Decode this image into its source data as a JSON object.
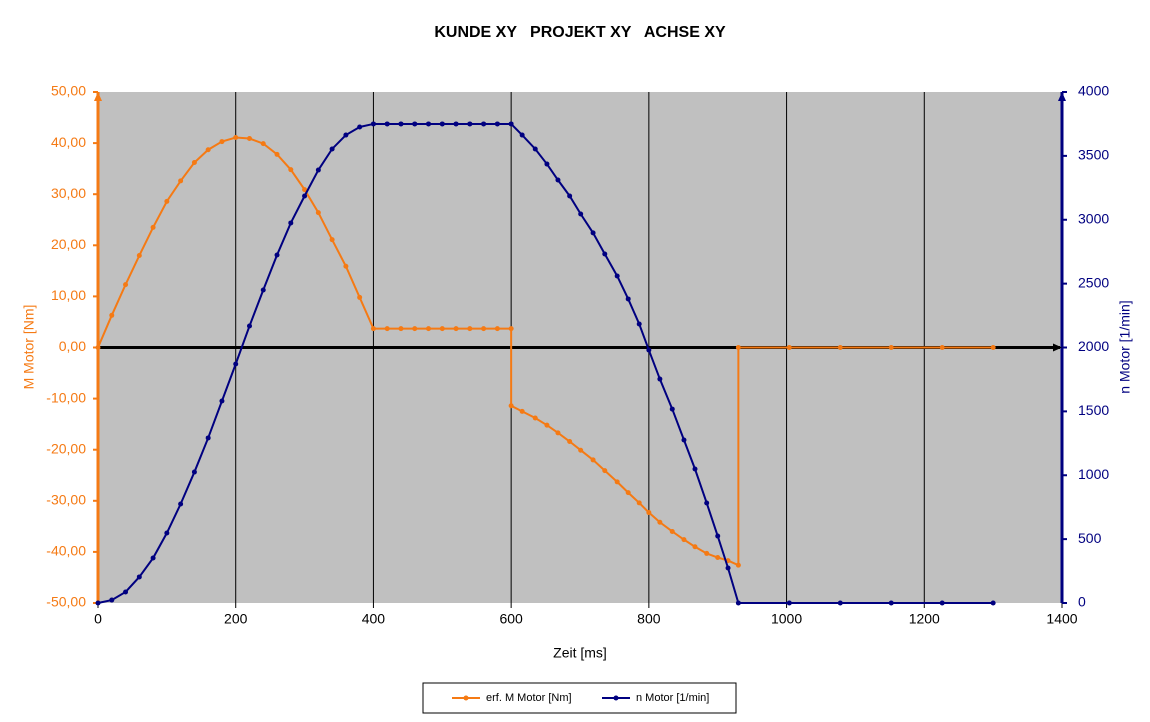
{
  "chart_data": {
    "type": "line",
    "title": "KUNDE XY   PROJEKT XY   ACHSE XY",
    "x_label": "Zeit [ms]",
    "y_label": "M Motor [Nm]",
    "y2_label": "n Motor [1/min]",
    "xlim": [
      0,
      1400
    ],
    "xticks": [
      0,
      200,
      400,
      600,
      800,
      1000,
      1200,
      1400
    ],
    "ylim": [
      -50,
      50
    ],
    "yticks": [
      {
        "value": -50,
        "label": "-50,00"
      },
      {
        "value": -40,
        "label": "-40,00"
      },
      {
        "value": -30,
        "label": "-30,00"
      },
      {
        "value": -20,
        "label": "-20,00"
      },
      {
        "value": -10,
        "label": "-10,00"
      },
      {
        "value": 0,
        "label": "0,00"
      },
      {
        "value": 10,
        "label": "10,00"
      },
      {
        "value": 20,
        "label": "20,00"
      },
      {
        "value": 30,
        "label": "30,00"
      },
      {
        "value": 40,
        "label": "40,00"
      },
      {
        "value": 50,
        "label": "50,00"
      }
    ],
    "y2lim": [
      0,
      4000
    ],
    "y2ticks": [
      0,
      500,
      1000,
      1500,
      2000,
      2500,
      3000,
      3500,
      4000
    ],
    "y_color": "#f57a14",
    "y2_color": "#000080",
    "grid": "x",
    "legend": "bottom",
    "series": [
      {
        "name": "erf. M Motor [Nm]",
        "color": "#f57a14",
        "x": [
          0,
          20,
          40,
          60,
          80,
          100,
          120,
          140,
          160,
          180,
          200,
          220,
          240,
          260,
          280,
          300,
          320,
          340,
          360,
          380,
          400,
          420,
          440,
          460,
          480,
          500,
          520,
          540,
          560,
          580,
          600,
          600,
          616,
          635,
          652,
          668,
          685,
          701,
          719,
          736,
          754,
          770,
          786,
          800,
          816,
          834,
          851,
          867,
          884,
          900,
          915,
          930,
          930,
          1004,
          1078,
          1152,
          1226,
          1300
        ],
        "values": [
          0,
          6.3,
          12.3,
          18,
          23.5,
          28.6,
          32.6,
          36.2,
          38.7,
          40.3,
          41.1,
          40.9,
          39.9,
          37.8,
          34.8,
          30.9,
          26.4,
          21.1,
          15.9,
          9.8,
          3.7,
          3.7,
          3.7,
          3.7,
          3.7,
          3.7,
          3.7,
          3.7,
          3.7,
          3.7,
          3.7,
          -11.4,
          -12.5,
          -13.8,
          -15.2,
          -16.7,
          -18.4,
          -20.1,
          -22,
          -24.1,
          -26.3,
          -28.4,
          -30.4,
          -32.3,
          -34.2,
          -36,
          -37.6,
          -39,
          -40.3,
          -41.1,
          -41.7,
          -42.6,
          0,
          0,
          0,
          0,
          0,
          0
        ]
      },
      {
        "name": "n Motor [1/min]",
        "color": "#000080",
        "axis": "y2",
        "x": [
          0,
          20,
          40,
          60,
          80,
          100,
          120,
          140,
          160,
          180,
          200,
          220,
          240,
          260,
          280,
          300,
          320,
          340,
          360,
          380,
          400,
          420,
          440,
          460,
          480,
          500,
          520,
          540,
          560,
          580,
          600,
          616,
          635,
          652,
          668,
          685,
          701,
          719,
          736,
          754,
          770,
          786,
          800,
          816,
          834,
          851,
          867,
          884,
          900,
          915,
          930,
          1004,
          1078,
          1152,
          1226,
          1300
        ],
        "values": [
          0,
          23,
          86,
          204,
          352,
          548,
          775,
          1025,
          1292,
          1581,
          1871,
          2168,
          2450,
          2724,
          2975,
          3186,
          3389,
          3554,
          3663,
          3726,
          3750,
          3750,
          3750,
          3750,
          3750,
          3750,
          3750,
          3750,
          3750,
          3750,
          3750,
          3663,
          3554,
          3436,
          3311,
          3186,
          3045,
          2897,
          2732,
          2560,
          2380,
          2184,
          1980,
          1753,
          1518,
          1276,
          1049,
          783,
          524,
          274,
          0,
          0,
          0,
          0,
          0,
          0
        ]
      }
    ]
  }
}
